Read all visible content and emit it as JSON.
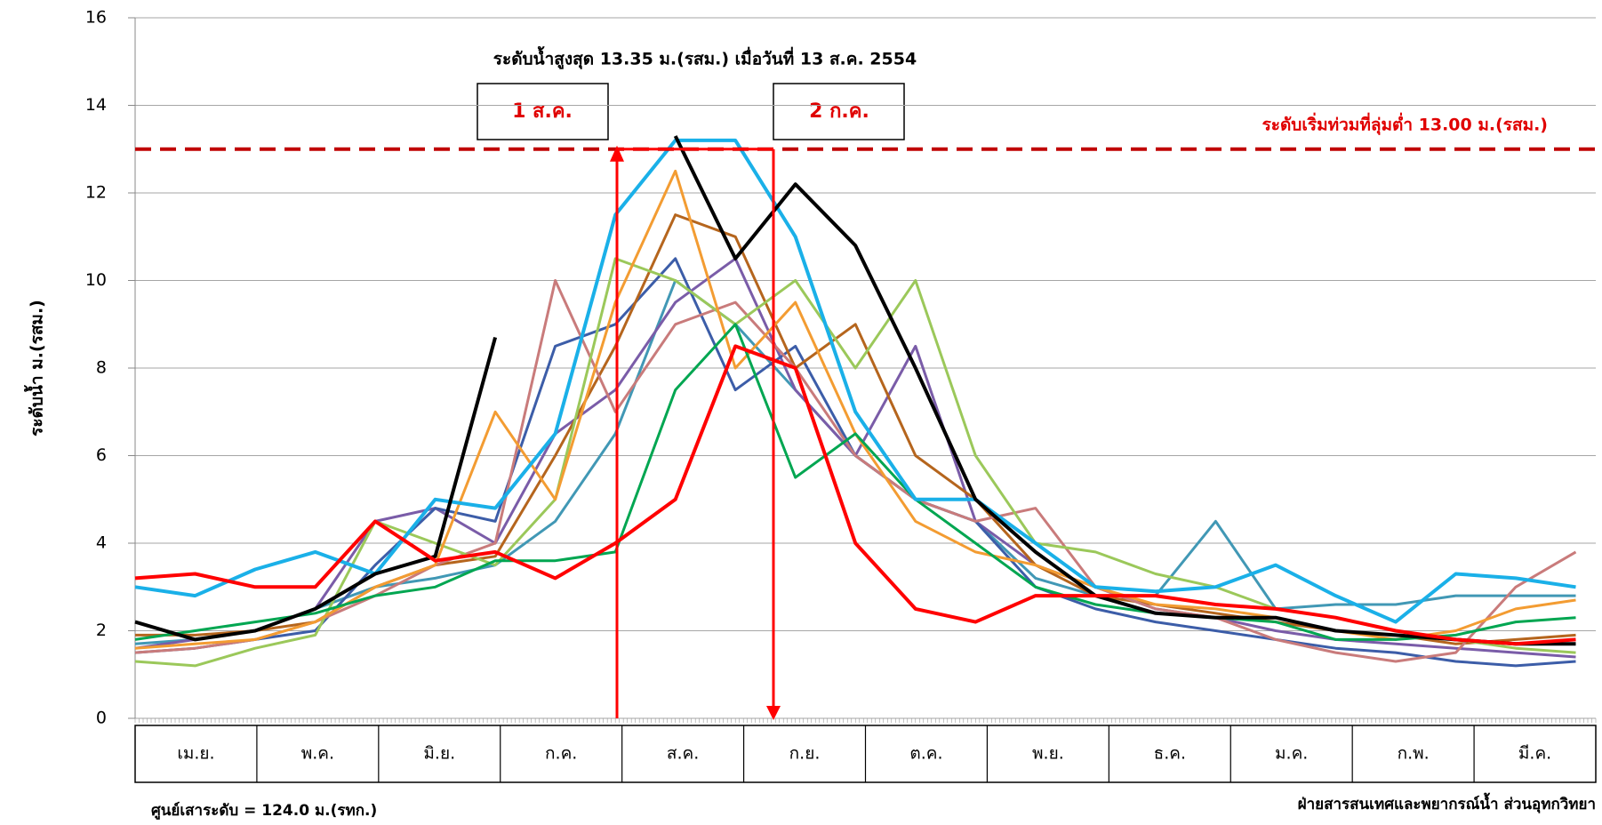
{
  "chart_data": {
    "type": "line",
    "title": "ระดับน้ำสูงสุด 13.35 ม.(รสม.) เมื่อวันที่ 13 ส.ค. 2554",
    "y_label": "ระดับน้ำ ม.(รสม.)",
    "threshold": 13,
    "threshold_label": "ระดับเริ่มท่วมที่ลุ่มต่ำ 13.00 ม.(รสม.)",
    "box_labels": [
      "1 ส.ค.",
      "2 ก.ค."
    ],
    "footer_left": "ศูนย์เสาระดับ = 124.0 ม.(รทก.)",
    "footer_right": "ฝ่ายสารสนเทศและพยากรณ์น้ำ ส่วนอุทกวิทยา",
    "categories": [
      "เม.ย.",
      "พ.ค.",
      "มิ.ย.",
      "ก.ค.",
      "ส.ค.",
      "ก.ย.",
      "ต.ค.",
      "พ.ย.",
      "ธ.ค.",
      "ม.ค.",
      "ก.พ.",
      "มี.ค."
    ],
    "x": [
      0,
      15,
      30,
      45,
      60,
      75,
      90,
      105,
      120,
      135,
      150,
      165,
      180,
      195,
      210,
      225,
      240,
      255,
      270,
      285,
      300,
      315,
      330,
      345,
      360
    ],
    "xlim": [
      0,
      365
    ],
    "ylim": [
      0,
      16
    ],
    "yticks": [
      0,
      2,
      4,
      6,
      8,
      10,
      12,
      14,
      16
    ],
    "grid": true,
    "series": [
      {
        "color": "#4198b5",
        "values": [
          1.7,
          1.8,
          2.0,
          2.5,
          3.0,
          3.2,
          3.5,
          4.5,
          6.5,
          10.0,
          9.0,
          7.5,
          6.0,
          5.0,
          4.5,
          3.2,
          2.8,
          2.8,
          4.5,
          2.5,
          2.6,
          2.6,
          2.8,
          2.8,
          2.8
        ]
      },
      {
        "color": "#7a5ca8",
        "values": [
          1.6,
          1.8,
          2.0,
          2.5,
          4.5,
          4.8,
          4.0,
          6.5,
          7.5,
          9.5,
          10.5,
          7.5,
          6.0,
          8.5,
          4.5,
          3.5,
          3.0,
          2.5,
          2.3,
          2.0,
          1.8,
          1.7,
          1.6,
          1.5,
          1.4
        ]
      },
      {
        "color": "#3c5da8",
        "values": [
          1.5,
          1.6,
          1.8,
          2.0,
          3.5,
          4.8,
          4.5,
          8.5,
          9.0,
          10.5,
          7.5,
          8.5,
          6.0,
          5.0,
          4.5,
          3.0,
          2.5,
          2.2,
          2.0,
          1.8,
          1.6,
          1.5,
          1.3,
          1.2,
          1.3
        ]
      },
      {
        "color": "#b5651d",
        "values": [
          1.9,
          1.9,
          2.0,
          2.2,
          3.0,
          3.5,
          3.7,
          6.0,
          8.5,
          11.5,
          11.0,
          8.0,
          9.0,
          6.0,
          5.0,
          3.5,
          2.8,
          2.6,
          2.4,
          2.2,
          2.0,
          1.9,
          1.7,
          1.8,
          1.9
        ]
      },
      {
        "color": "#c97b7b",
        "values": [
          1.5,
          1.6,
          1.8,
          2.2,
          2.8,
          3.5,
          4.0,
          10.0,
          7.0,
          9.0,
          9.5,
          8.0,
          6.0,
          5.0,
          4.5,
          4.8,
          3.0,
          2.5,
          2.3,
          1.8,
          1.5,
          1.3,
          1.5,
          3.0,
          3.8
        ]
      },
      {
        "color": "#9bc85a",
        "values": [
          1.3,
          1.2,
          1.6,
          1.9,
          4.5,
          4.0,
          3.5,
          5.0,
          10.5,
          10.0,
          9.0,
          10.0,
          8.0,
          10.0,
          6.0,
          4.0,
          3.8,
          3.3,
          3.0,
          2.5,
          2.3,
          2.0,
          1.8,
          1.6,
          1.5
        ]
      },
      {
        "color": "#f39c32",
        "values": [
          1.6,
          1.7,
          1.8,
          2.2,
          3.0,
          3.5,
          7.0,
          5.0,
          9.5,
          12.5,
          8.0,
          9.5,
          6.5,
          4.5,
          3.8,
          3.5,
          3.0,
          2.6,
          2.5,
          2.3,
          2.0,
          1.8,
          2.0,
          2.5,
          2.7
        ]
      },
      {
        "color": "#00a651",
        "values": [
          1.8,
          2.0,
          2.2,
          2.4,
          2.8,
          3.0,
          3.6,
          3.6,
          3.8,
          7.5,
          9.0,
          5.5,
          6.5,
          5.0,
          4.0,
          3.0,
          2.6,
          2.4,
          2.3,
          2.2,
          1.8,
          1.8,
          1.9,
          2.2,
          2.3
        ]
      },
      {
        "color": "#1ab0e8",
        "values": [
          3.0,
          2.8,
          3.4,
          3.8,
          3.3,
          5.0,
          4.8,
          6.5,
          11.5,
          13.2,
          13.2,
          11.0,
          7.0,
          5.0,
          5.0,
          4.0,
          3.0,
          2.9,
          3.0,
          3.5,
          2.8,
          2.2,
          3.3,
          3.2,
          3.0
        ]
      },
      {
        "color": "#000000",
        "values": [
          2.2,
          1.8,
          2.0,
          2.5,
          3.3,
          3.7,
          8.7,
          null,
          null,
          13.3,
          10.5,
          12.2,
          10.8,
          8.0,
          5.0,
          3.8,
          2.8,
          2.4,
          2.3,
          2.3,
          2.0,
          1.9,
          1.8,
          1.7,
          1.7
        ]
      },
      {
        "color": "#ff0000",
        "values": [
          3.2,
          3.3,
          3.0,
          3.0,
          4.5,
          3.6,
          3.8,
          3.2,
          4.0,
          5.0,
          8.5,
          8.0,
          4.0,
          2.5,
          2.2,
          2.8,
          2.8,
          2.8,
          2.6,
          2.5,
          2.3,
          2.0,
          1.8,
          1.7,
          1.8
        ]
      }
    ]
  }
}
